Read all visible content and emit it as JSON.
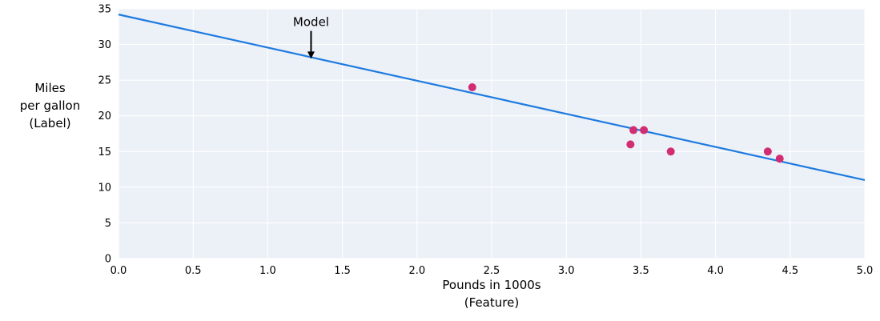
{
  "chart_data": {
    "type": "scatter",
    "title": "",
    "xlabel": "Pounds in 1000s\n(Feature)",
    "ylabel": "Miles\nper gallon\n(Label)",
    "xlim": [
      0,
      5
    ],
    "ylim": [
      0,
      35
    ],
    "grid": true,
    "legend_position": "none",
    "xticks": {
      "values": [
        0,
        0.5,
        1,
        1.5,
        2,
        2.5,
        3,
        3.5,
        4,
        4.5,
        5
      ],
      "labels": [
        "0.0",
        "0.5",
        "1.0",
        "1.5",
        "2.0",
        "2.5",
        "3.0",
        "3.5",
        "4.0",
        "4.5",
        "5.0"
      ]
    },
    "yticks": {
      "values": [
        0,
        5,
        10,
        15,
        20,
        25,
        30,
        35
      ],
      "labels": [
        "0",
        "5",
        "10",
        "15",
        "20",
        "25",
        "30",
        "35"
      ]
    },
    "series": {
      "scatter": {
        "name": "training-data",
        "color": "#d22d72",
        "marker_radius": 5,
        "points": [
          [
            2.37,
            24
          ],
          [
            3.43,
            16
          ],
          [
            3.45,
            18
          ],
          [
            3.52,
            18
          ],
          [
            3.7,
            15
          ],
          [
            4.35,
            15
          ],
          [
            4.43,
            14
          ]
        ]
      },
      "model_line": {
        "name": "model",
        "color": "#1e7be0",
        "x": [
          0,
          5
        ],
        "y": [
          34.2,
          11.0
        ]
      }
    },
    "annotation": {
      "text": "Model",
      "x": 1.29,
      "text_y": 32.6,
      "arrow_from_y": 31.9,
      "arrow_to_y": 28.0,
      "color": "#000000"
    },
    "colors": {
      "plot_bg": "#ecf0f7",
      "grid": "#ffffff",
      "tick_text": "#000000"
    }
  }
}
